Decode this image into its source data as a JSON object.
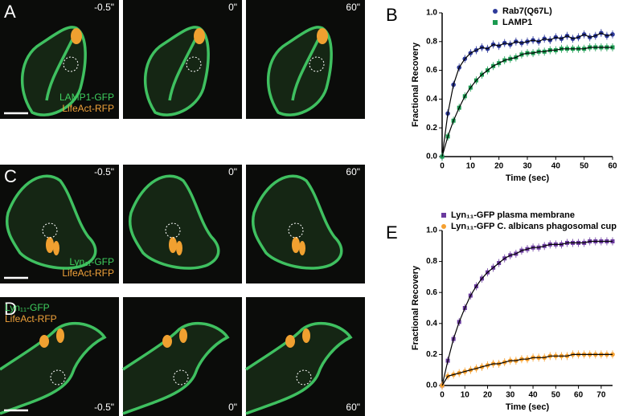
{
  "panels": [
    {
      "letter": "A",
      "times": [
        "-0.5\"",
        "0\"",
        "60\""
      ],
      "labels": [
        {
          "text": "LAMP1-GFP",
          "color": "#3fcf5f"
        },
        {
          "text": "LifeAct-RFP",
          "color": "#f0a23a"
        }
      ]
    },
    {
      "letter": "C",
      "times": [
        "-0.5\"",
        "0\"",
        "60\""
      ],
      "labels": [
        {
          "text": "Lyn₁₁-GFP",
          "color": "#3fcf5f"
        },
        {
          "text": "LifeAct-RFP",
          "color": "#f0a23a"
        }
      ]
    },
    {
      "letter": "D",
      "times": [
        "-0.5\"",
        "0\"",
        "60\""
      ],
      "labels": [
        {
          "text": "Lyn₁₁-GFP",
          "color": "#3fcf5f"
        },
        {
          "text": "LifeAct-RFP",
          "color": "#f0a23a"
        }
      ]
    }
  ],
  "chart_data": [
    {
      "type": "scatter",
      "panel": "B",
      "xlabel": "Time (sec)",
      "ylabel": "Fractional Recovery",
      "xlim": [
        0,
        60
      ],
      "xticks": [
        0,
        10,
        20,
        30,
        40,
        50,
        60
      ],
      "ylim": [
        0,
        1.0
      ],
      "yticks": [
        {
          "value": 0,
          "label": "0.0"
        },
        0.2,
        0.4,
        0.6,
        0.8,
        {
          "value": 1.0,
          "label": "1.0"
        }
      ],
      "x": [
        0,
        2,
        4,
        6,
        8,
        10,
        12,
        14,
        16,
        18,
        20,
        22,
        24,
        26,
        28,
        30,
        32,
        34,
        36,
        38,
        40,
        42,
        44,
        46,
        48,
        50,
        52,
        54,
        56,
        58,
        60
      ],
      "series": [
        {
          "name": "Rab7(Q67L)",
          "color": "#2e3a9a",
          "marker": "circle",
          "values": [
            0,
            0.3,
            0.5,
            0.62,
            0.68,
            0.72,
            0.74,
            0.76,
            0.75,
            0.78,
            0.77,
            0.79,
            0.78,
            0.8,
            0.79,
            0.8,
            0.81,
            0.8,
            0.82,
            0.81,
            0.83,
            0.82,
            0.84,
            0.82,
            0.83,
            0.85,
            0.83,
            0.84,
            0.86,
            0.84,
            0.85
          ]
        },
        {
          "name": "LAMP1",
          "color": "#1a9a50",
          "marker": "square",
          "values": [
            0,
            0.14,
            0.25,
            0.34,
            0.42,
            0.48,
            0.53,
            0.57,
            0.6,
            0.63,
            0.65,
            0.67,
            0.68,
            0.69,
            0.71,
            0.72,
            0.72,
            0.73,
            0.73,
            0.74,
            0.74,
            0.75,
            0.75,
            0.75,
            0.75,
            0.75,
            0.76,
            0.76,
            0.76,
            0.76,
            0.76
          ]
        }
      ]
    },
    {
      "type": "scatter",
      "panel": "E",
      "xlabel": "Time (sec)",
      "ylabel": "Fractional Recovery",
      "xlim": [
        0,
        75
      ],
      "xticks": [
        0,
        10,
        20,
        30,
        40,
        50,
        60,
        70
      ],
      "ylim": [
        0,
        1.0
      ],
      "yticks": [
        {
          "value": 0,
          "label": "0.0"
        },
        0.2,
        0.4,
        0.6,
        0.8,
        {
          "value": 1.0,
          "label": "1.0"
        }
      ],
      "x": [
        0,
        2.5,
        5,
        7.5,
        10,
        12.5,
        15,
        17.5,
        20,
        22.5,
        25,
        27.5,
        30,
        32.5,
        35,
        37.5,
        40,
        42.5,
        45,
        47.5,
        50,
        52.5,
        55,
        57.5,
        60,
        62.5,
        65,
        67.5,
        70,
        72.5,
        75
      ],
      "series": [
        {
          "name": "Lyn₁₁-GFP plasma membrane",
          "color": "#6a3a9e",
          "marker": "square",
          "values": [
            0,
            0.16,
            0.3,
            0.41,
            0.5,
            0.58,
            0.64,
            0.69,
            0.73,
            0.76,
            0.79,
            0.82,
            0.84,
            0.85,
            0.87,
            0.88,
            0.89,
            0.89,
            0.9,
            0.91,
            0.91,
            0.91,
            0.92,
            0.92,
            0.92,
            0.92,
            0.93,
            0.93,
            0.93,
            0.93,
            0.93
          ]
        },
        {
          "name": "Lyn₁₁-GFP C. albicans phagosomal cup",
          "color": "#f5a030",
          "marker": "circle",
          "values": [
            0,
            0.06,
            0.07,
            0.08,
            0.09,
            0.1,
            0.11,
            0.12,
            0.13,
            0.14,
            0.14,
            0.15,
            0.16,
            0.16,
            0.17,
            0.17,
            0.18,
            0.18,
            0.18,
            0.19,
            0.19,
            0.19,
            0.19,
            0.2,
            0.2,
            0.2,
            0.2,
            0.2,
            0.2,
            0.2,
            0.2
          ]
        }
      ]
    }
  ]
}
